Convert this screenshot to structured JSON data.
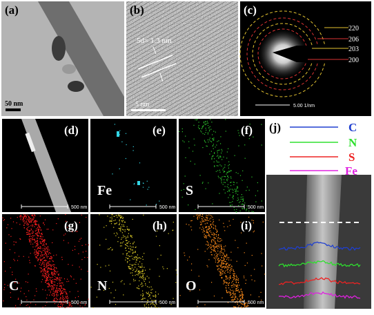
{
  "panels": [
    {
      "label": "(a)",
      "scale": "50 nm"
    },
    {
      "label": "(b)",
      "annotation": "5d= 1.3 nm",
      "scale": "5 nm"
    },
    {
      "label": "(c)",
      "rings": [
        "220",
        "206",
        "203",
        "200"
      ],
      "scale": "5.00 1/nm"
    },
    {
      "label": "(d)",
      "scale": "500 nm"
    },
    {
      "label": "(e)",
      "element": "Fe",
      "scale": "500 nm"
    },
    {
      "label": "(f)",
      "element": "S",
      "scale": "500 nm"
    },
    {
      "label": "(g)",
      "element": "C",
      "scale": "500 nm"
    },
    {
      "label": "(h)",
      "element": "N",
      "scale": "500 nm"
    },
    {
      "label": "(i)",
      "element": "O",
      "scale": "500 nm"
    },
    {
      "label": "(j)",
      "legend": [
        "C",
        "N",
        "S",
        "Fe"
      ]
    }
  ]
}
